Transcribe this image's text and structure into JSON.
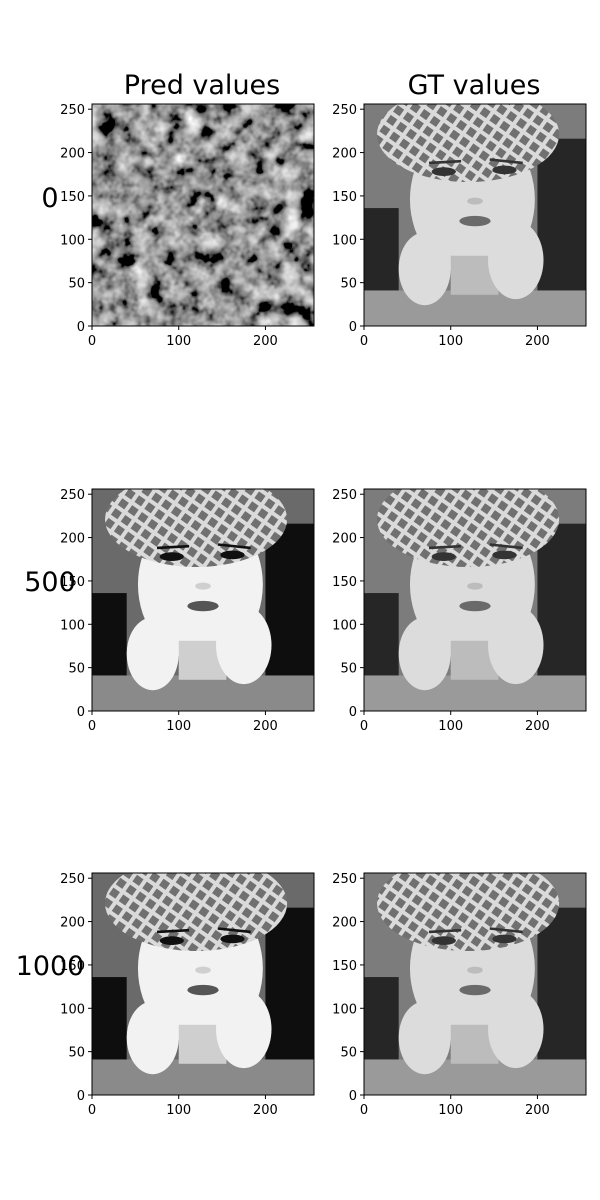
{
  "figure": {
    "column_titles": [
      "Pred values",
      "GT values"
    ],
    "row_labels": [
      "0",
      "500",
      "1000"
    ]
  },
  "chart_data": {
    "type": "heatmap",
    "layout": "3 rows x 2 columns grid of grayscale image panels",
    "colormap": "gray",
    "image_content": "grayscale portrait of a woman in a crocheted hat with hands on her chin",
    "xlim": [
      0,
      256
    ],
    "ylim": [
      256,
      0
    ],
    "x_ticks": [
      0,
      100,
      200
    ],
    "y_ticks": [
      0,
      50,
      100,
      150,
      200,
      250
    ],
    "grid": false,
    "panels": [
      {
        "row": "0",
        "column": "Pred values",
        "content": "noise"
      },
      {
        "row": "0",
        "column": "GT values",
        "content": "portrait"
      },
      {
        "row": "500",
        "column": "Pred values",
        "content": "portrait-high-contrast"
      },
      {
        "row": "500",
        "column": "GT values",
        "content": "portrait"
      },
      {
        "row": "1000",
        "column": "Pred values",
        "content": "portrait-high-contrast"
      },
      {
        "row": "1000",
        "column": "GT values",
        "content": "portrait"
      }
    ]
  }
}
